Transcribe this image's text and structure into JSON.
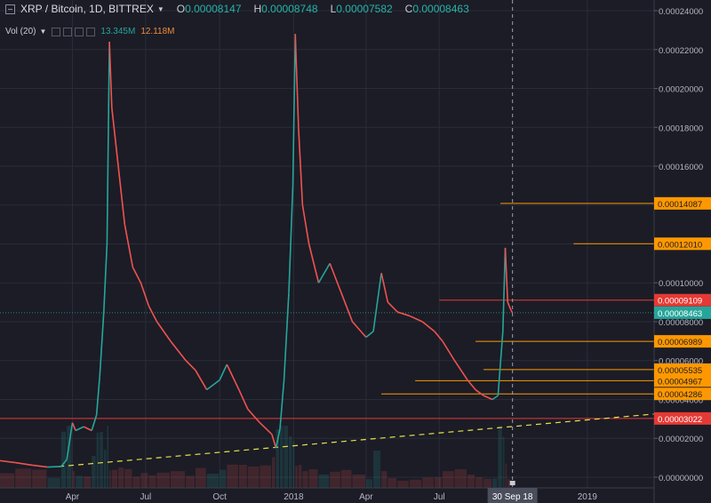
{
  "header": {
    "symbol": "XRP / Bitcoin, 1D, BITTREX",
    "o_label": "O",
    "o_value": "0.00008147",
    "h_label": "H",
    "h_value": "0.00008748",
    "l_label": "L",
    "l_value": "0.00007582",
    "c_label": "C",
    "c_value": "0.00008463"
  },
  "volume": {
    "label": "Vol (20)",
    "value1": "13.345M",
    "value2": "12.118M"
  },
  "colors": {
    "bg": "#1b1c26",
    "up": "#26a69a",
    "down": "#ef5350",
    "orange": "#ff9800",
    "red": "#e53935",
    "grid": "#2a2c38",
    "trend": "#e8e04a"
  },
  "chart_data": {
    "type": "line",
    "title": "XRP / Bitcoin, 1D, BITTREX",
    "y_ticks": [
      "0.00024000",
      "0.00022000",
      "0.00020000",
      "0.00018000",
      "0.00016000",
      "0.00014000",
      "0.00012000",
      "0.00010000",
      "0.00008000",
      "0.00006000",
      "0.00004000",
      "0.00002000",
      "0.00000000"
    ],
    "ylim": [
      -5.5e-06,
      0.0002455
    ],
    "x_ticks": [
      {
        "label": "Apr",
        "date": "2017-04-01"
      },
      {
        "label": "Jul",
        "date": "2017-07-01"
      },
      {
        "label": "Oct",
        "date": "2017-10-01"
      },
      {
        "label": "2018",
        "date": "2018-01-01"
      },
      {
        "label": "Apr",
        "date": "2018-04-01"
      },
      {
        "label": "Jul",
        "date": "2018-07-01"
      },
      {
        "label": "2019",
        "date": "2019-01-01"
      }
    ],
    "xlim": [
      "2017-01-01",
      "2019-03-25"
    ],
    "cursor": {
      "label": "30 Sep 18",
      "date": "2018-09-30"
    },
    "price_series": [
      {
        "date": "2017-01-01",
        "value": 8.5e-06
      },
      {
        "date": "2017-01-20",
        "value": 7.5e-06
      },
      {
        "date": "2017-02-10",
        "value": 6.2e-06
      },
      {
        "date": "2017-03-01",
        "value": 5.2e-06
      },
      {
        "date": "2017-03-18",
        "value": 5.5e-06
      },
      {
        "date": "2017-03-25",
        "value": 9e-06
      },
      {
        "date": "2017-04-01",
        "value": 2.8e-05
      },
      {
        "date": "2017-04-05",
        "value": 2.4e-05
      },
      {
        "date": "2017-04-15",
        "value": 2.6e-05
      },
      {
        "date": "2017-04-25",
        "value": 2.4e-05
      },
      {
        "date": "2017-05-01",
        "value": 3.2e-05
      },
      {
        "date": "2017-05-05",
        "value": 5.2e-05
      },
      {
        "date": "2017-05-10",
        "value": 8.5e-05
      },
      {
        "date": "2017-05-14",
        "value": 0.00012
      },
      {
        "date": "2017-05-17",
        "value": 0.000224
      },
      {
        "date": "2017-05-20",
        "value": 0.00019
      },
      {
        "date": "2017-05-28",
        "value": 0.00016
      },
      {
        "date": "2017-06-05",
        "value": 0.00013
      },
      {
        "date": "2017-06-15",
        "value": 0.000108
      },
      {
        "date": "2017-06-25",
        "value": 0.0001
      },
      {
        "date": "2017-07-05",
        "value": 8.8e-05
      },
      {
        "date": "2017-07-15",
        "value": 8e-05
      },
      {
        "date": "2017-08-01",
        "value": 7e-05
      },
      {
        "date": "2017-08-20",
        "value": 6e-05
      },
      {
        "date": "2017-09-01",
        "value": 5.5e-05
      },
      {
        "date": "2017-09-15",
        "value": 4.5e-05
      },
      {
        "date": "2017-10-01",
        "value": 5e-05
      },
      {
        "date": "2017-10-10",
        "value": 5.8e-05
      },
      {
        "date": "2017-10-25",
        "value": 4.5e-05
      },
      {
        "date": "2017-11-05",
        "value": 3.5e-05
      },
      {
        "date": "2017-11-20",
        "value": 2.8e-05
      },
      {
        "date": "2017-12-05",
        "value": 2.2e-05
      },
      {
        "date": "2017-12-10",
        "value": 1.5e-05
      },
      {
        "date": "2017-12-15",
        "value": 2.5e-05
      },
      {
        "date": "2017-12-20",
        "value": 5e-05
      },
      {
        "date": "2017-12-26",
        "value": 9.5e-05
      },
      {
        "date": "2017-12-31",
        "value": 0.00015
      },
      {
        "date": "2018-01-03",
        "value": 0.000228
      },
      {
        "date": "2018-01-07",
        "value": 0.00018
      },
      {
        "date": "2018-01-12",
        "value": 0.00014
      },
      {
        "date": "2018-01-20",
        "value": 0.00012
      },
      {
        "date": "2018-02-01",
        "value": 0.0001
      },
      {
        "date": "2018-02-15",
        "value": 0.00011
      },
      {
        "date": "2018-03-01",
        "value": 9.5e-05
      },
      {
        "date": "2018-03-15",
        "value": 8e-05
      },
      {
        "date": "2018-04-01",
        "value": 7.2e-05
      },
      {
        "date": "2018-04-10",
        "value": 7.5e-05
      },
      {
        "date": "2018-04-20",
        "value": 0.000105
      },
      {
        "date": "2018-04-28",
        "value": 9e-05
      },
      {
        "date": "2018-05-10",
        "value": 8.5e-05
      },
      {
        "date": "2018-05-25",
        "value": 8.3e-05
      },
      {
        "date": "2018-06-10",
        "value": 8e-05
      },
      {
        "date": "2018-06-25",
        "value": 7.5e-05
      },
      {
        "date": "2018-07-05",
        "value": 7e-05
      },
      {
        "date": "2018-07-20",
        "value": 6e-05
      },
      {
        "date": "2018-08-05",
        "value": 5e-05
      },
      {
        "date": "2018-08-15",
        "value": 4.5e-05
      },
      {
        "date": "2018-08-25",
        "value": 4.2e-05
      },
      {
        "date": "2018-09-05",
        "value": 4e-05
      },
      {
        "date": "2018-09-12",
        "value": 4.2e-05
      },
      {
        "date": "2018-09-18",
        "value": 7.5e-05
      },
      {
        "date": "2018-09-21",
        "value": 0.000118
      },
      {
        "date": "2018-09-24",
        "value": 9e-05
      },
      {
        "date": "2018-09-28",
        "value": 8.6e-05
      },
      {
        "date": "2018-09-30",
        "value": 8.46e-05
      }
    ],
    "horizontal_levels": [
      {
        "label": "0.00014087",
        "value": 0.00014087,
        "color": "orange",
        "from": "2018-09-15"
      },
      {
        "label": "0.00012010",
        "value": 0.0001201,
        "color": "orange",
        "from": "2018-12-15"
      },
      {
        "label": "0.00009109",
        "value": 9.109e-05,
        "color": "red",
        "from": "2018-07-01"
      },
      {
        "label": "0.00006989",
        "value": 6.989e-05,
        "color": "orange",
        "from": "2018-08-15"
      },
      {
        "label": "0.00005535",
        "value": 5.535e-05,
        "color": "orange",
        "from": "2018-08-25"
      },
      {
        "label": "0.00004967",
        "value": 4.967e-05,
        "color": "orange",
        "from": "2018-06-01"
      },
      {
        "label": "0.00004286",
        "value": 4.286e-05,
        "color": "orange",
        "from": "2018-04-20"
      },
      {
        "label": "0.00003022",
        "value": 3.022e-05,
        "color": "red",
        "from": "2017-01-01"
      }
    ],
    "current_price": {
      "label": "0.00008463",
      "value": 8.463e-05
    },
    "trendline": {
      "from": {
        "date": "2017-03-15",
        "value": 5.5e-06
      },
      "to": {
        "date": "2019-03-25",
        "value": 3.25e-05
      }
    }
  }
}
